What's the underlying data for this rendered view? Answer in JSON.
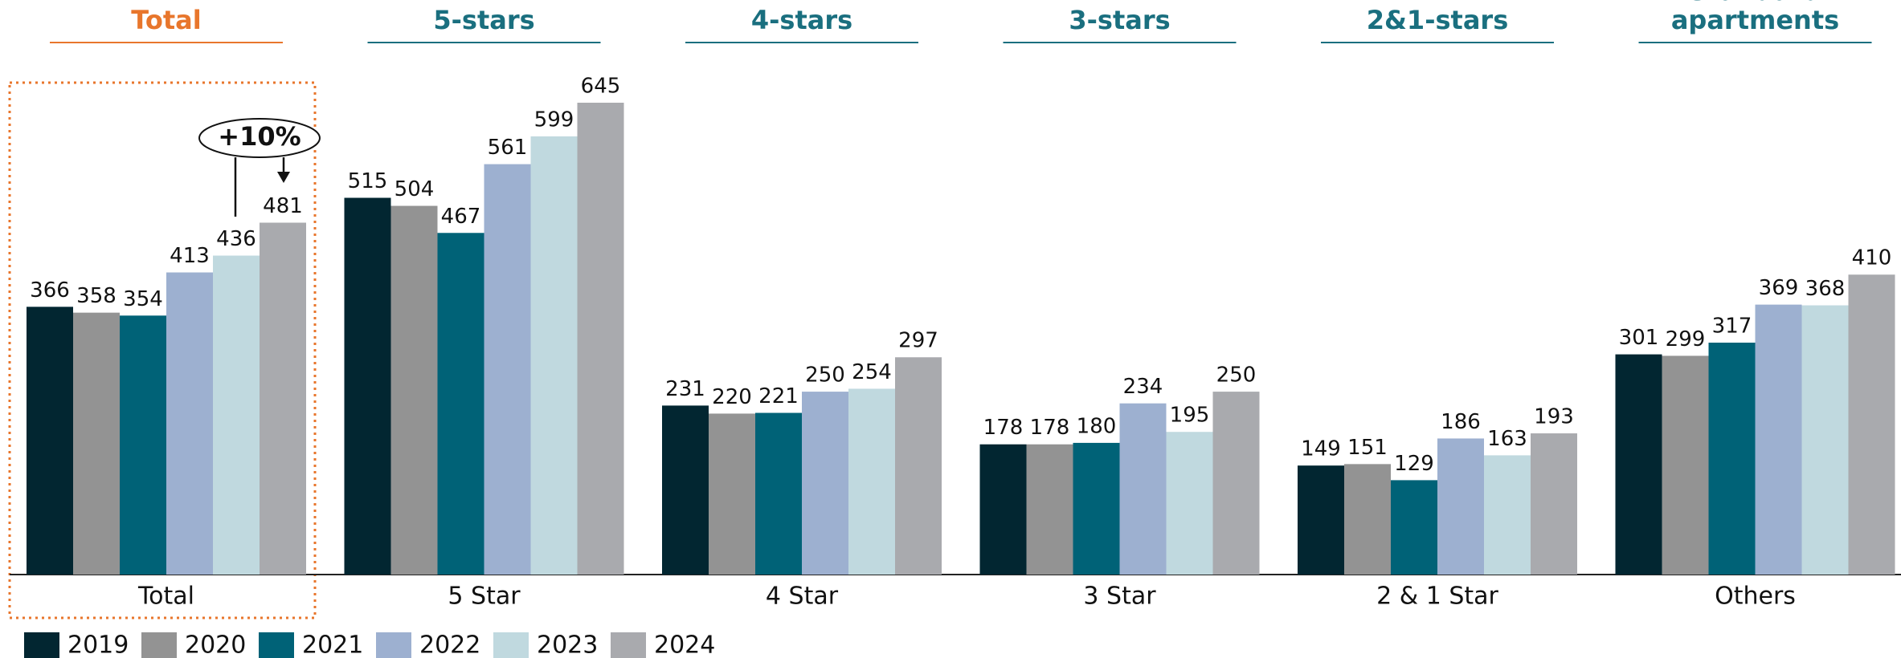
{
  "chart_data": {
    "type": "bar",
    "headers": [
      "Total",
      "5-stars",
      "4-stars",
      "3-stars",
      "2&1-stars",
      "Standard apartments"
    ],
    "annotation": "+10%",
    "categories": [
      "Total",
      "5 Star",
      "4 Star",
      "3 Star",
      "2 & 1 Star",
      "Others"
    ],
    "series": [
      {
        "name": "2019",
        "color": "#022631",
        "values": [
          366,
          515,
          231,
          178,
          149,
          301
        ]
      },
      {
        "name": "2020",
        "color": "#939393",
        "values": [
          358,
          504,
          220,
          178,
          151,
          299
        ]
      },
      {
        "name": "2021",
        "color": "#006277",
        "values": [
          354,
          467,
          221,
          180,
          129,
          317
        ]
      },
      {
        "name": "2022",
        "color": "#9db0d0",
        "values": [
          413,
          561,
          250,
          234,
          186,
          369
        ]
      },
      {
        "name": "2023",
        "color": "#c0d9df",
        "values": [
          436,
          599,
          254,
          195,
          163,
          368
        ]
      },
      {
        "name": "2024",
        "color": "#a9aaae",
        "values": [
          481,
          645,
          297,
          250,
          193,
          410
        ]
      }
    ]
  }
}
